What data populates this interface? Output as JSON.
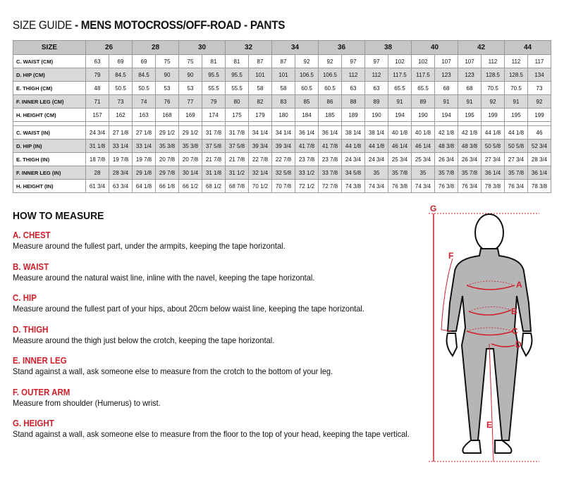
{
  "title": {
    "prefix": "SIZE GUIDE",
    "main": " - MENS MOTOCROSS/OFF-ROAD - PANTS"
  },
  "table": {
    "size_label": "SIZE",
    "sizes": [
      "26",
      "28",
      "30",
      "32",
      "34",
      "36",
      "38",
      "40",
      "42",
      "44"
    ],
    "cm_rows": [
      {
        "label": "C. WAIST (CM)",
        "values": [
          "63",
          "69",
          "69",
          "75",
          "75",
          "81",
          "81",
          "87",
          "87",
          "92",
          "92",
          "97",
          "97",
          "102",
          "102",
          "107",
          "107",
          "112",
          "112",
          "117"
        ]
      },
      {
        "label": "D. HIP (CM)",
        "values": [
          "79",
          "84.5",
          "84.5",
          "90",
          "90",
          "95.5",
          "95.5",
          "101",
          "101",
          "106.5",
          "106.5",
          "112",
          "112",
          "117.5",
          "117.5",
          "123",
          "123",
          "128.5",
          "128.5",
          "134"
        ]
      },
      {
        "label": "E. THIGH (CM)",
        "values": [
          "48",
          "50.5",
          "50.5",
          "53",
          "53",
          "55.5",
          "55.5",
          "58",
          "58",
          "60.5",
          "60.5",
          "63",
          "63",
          "65.5",
          "65.5",
          "68",
          "68",
          "70.5",
          "70.5",
          "73"
        ]
      },
      {
        "label": "F. INNER LEG (CM)",
        "values": [
          "71",
          "73",
          "74",
          "76",
          "77",
          "79",
          "80",
          "82",
          "83",
          "85",
          "86",
          "88",
          "89",
          "91",
          "89",
          "91",
          "91",
          "92",
          "91",
          "92"
        ]
      },
      {
        "label": "H. HEIGHT (CM)",
        "values": [
          "157",
          "162",
          "163",
          "168",
          "169",
          "174",
          "175",
          "179",
          "180",
          "184",
          "185",
          "189",
          "190",
          "194",
          "190",
          "194",
          "195",
          "199",
          "195",
          "199"
        ]
      }
    ],
    "in_rows": [
      {
        "label": "C. WAIST (IN)",
        "values": [
          "24 3/4",
          "27 1/8",
          "27 1/8",
          "29 1/2",
          "29 1/2",
          "31 7/8",
          "31 7/8",
          "34 1/4",
          "34 1/4",
          "36 1/4",
          "36 1/4",
          "38 1/4",
          "38 1/4",
          "40 1/8",
          "40 1/8",
          "42 1/8",
          "42 1/8",
          "44 1/8",
          "44 1/8",
          "46"
        ]
      },
      {
        "label": "D. HIP (IN)",
        "values": [
          "31 1/8",
          "33 1/4",
          "33 1/4",
          "35 3/8",
          "35 3/8",
          "37 5/8",
          "37 5/8",
          "39 3/4",
          "39 3/4",
          "41 7/8",
          "41 7/8",
          "44 1/8",
          "44 1/8",
          "46 1/4",
          "46 1/4",
          "48 3/8",
          "48 3/8",
          "50 5/8",
          "50 5/8",
          "52 3/4"
        ]
      },
      {
        "label": "E. THIGH (IN)",
        "values": [
          "18 7/8",
          "19 7/8",
          "19 7/8",
          "20 7/8",
          "20 7/8",
          "21 7/8",
          "21 7/8",
          "22 7/8",
          "22 7/8",
          "23 7/8",
          "23 7/8",
          "24 3/4",
          "24 3/4",
          "25 3/4",
          "25 3/4",
          "26 3/4",
          "26 3/4",
          "27 3/4",
          "27 3/4",
          "28 3/4"
        ]
      },
      {
        "label": "F. INNER LEG (IN)",
        "values": [
          "28",
          "28 3/4",
          "29 1/8",
          "29 7/8",
          "30 1/4",
          "31 1/8",
          "31 1/2",
          "32 1/4",
          "32 5/8",
          "33 1/2",
          "33 7/8",
          "34 5/8",
          "35",
          "35 7/8",
          "35",
          "35 7/8",
          "35 7/8",
          "36 1/4",
          "35 7/8",
          "36 1/4"
        ]
      },
      {
        "label": "H. HEIGHT (IN)",
        "values": [
          "61 3/4",
          "63 3/4",
          "64 1/8",
          "66 1/8",
          "66 1/2",
          "68 1/2",
          "68 7/8",
          "70 1/2",
          "70 7/8",
          "72 1/2",
          "72 7/8",
          "74 3/8",
          "74 3/4",
          "76 3/8",
          "74 3/4",
          "76 3/8",
          "76 3/4",
          "78 3/8",
          "76 3/4",
          "78 3/8"
        ]
      }
    ]
  },
  "how_to_measure": {
    "heading": "HOW TO MEASURE",
    "items": [
      {
        "title": "A. CHEST",
        "text": "Measure around the fullest part, under the armpits, keeping the tape horizontal."
      },
      {
        "title": "B. WAIST",
        "text": "Measure around the natural waist line, inline with the navel, keeping the tape horizontal."
      },
      {
        "title": "C. HIP",
        "text": "Measure around the fullest part of your hips, about 20cm below waist line, keeping the tape horizontal."
      },
      {
        "title": "D. THIGH",
        "text": "Measure around the thigh just below the crotch, keeping the tape horizontal."
      },
      {
        "title": "E. INNER LEG",
        "text": "Stand against a wall, ask someone else to measure from the crotch to the bottom of your leg."
      },
      {
        "title": "F. OUTER ARM",
        "text": "Measure from shoulder (Humerus) to wrist."
      },
      {
        "title": "G. HEIGHT",
        "text": "Stand against a wall, ask someone else to measure from the floor to the top of your head, keeping the tape vertical."
      }
    ]
  },
  "figure": {
    "labels": {
      "a": "A",
      "b": "B",
      "c": "C",
      "d": "D",
      "e": "E",
      "f": "F",
      "g": "G"
    },
    "accent": "#d0202c",
    "suit": "#b5b5b5"
  }
}
